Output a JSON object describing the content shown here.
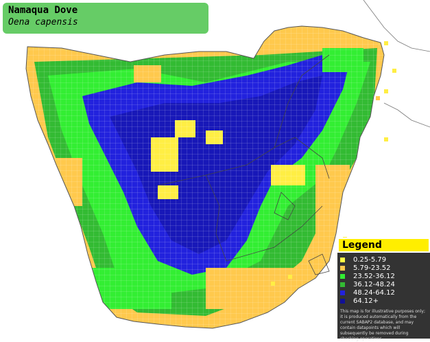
{
  "title": {
    "common_name": "Namaqua Dove",
    "scientific_name": "Oena capensis"
  },
  "legend": {
    "heading": "Legend",
    "classes": [
      {
        "label": "0.25-5.79",
        "color": "#ffff44"
      },
      {
        "label": "5.79-23.52",
        "color": "#ffc94d"
      },
      {
        "label": "23.52-36.12",
        "color": "#33ee33"
      },
      {
        "label": "36.12-48.24",
        "color": "#33bb33"
      },
      {
        "label": "48.24-64.12",
        "color": "#2222dd"
      },
      {
        "label": "64.12+",
        "color": "#111199"
      }
    ],
    "disclaimer": "This map is for illustrative purposes only; it is produced automatically from the current SABAP2 database, and may contain datapoints which will subsequently be removed during checking operations."
  },
  "map": {
    "colors": {
      "land_bg": "#ffffff",
      "border": "#666666",
      "grid": "#ffffff"
    }
  }
}
